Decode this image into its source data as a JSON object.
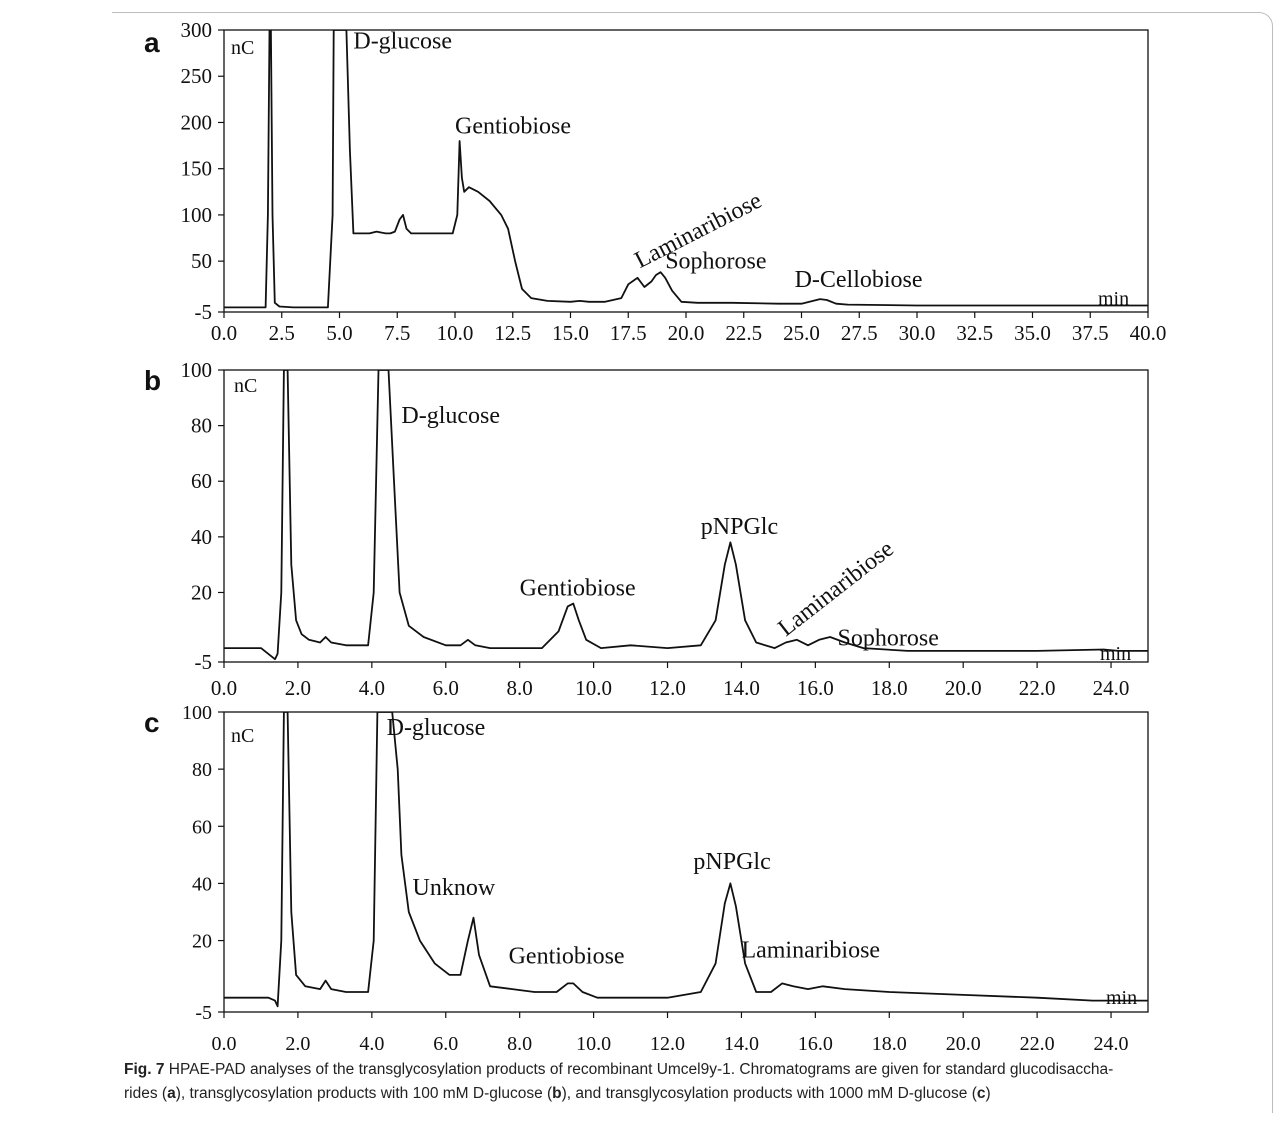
{
  "chart_data": [
    {
      "type": "line",
      "panel": "a",
      "ylabel": "nC",
      "xlabel": "min",
      "xlim": [
        0,
        40
      ],
      "ylim": [
        -5,
        300
      ],
      "x_ticks": [
        0,
        2.5,
        5,
        7.5,
        10,
        12.5,
        15,
        17.5,
        20,
        22.5,
        25,
        27.5,
        30,
        32.5,
        35,
        37.5,
        40
      ],
      "x_tick_labels": [
        "0.0",
        "2.5",
        "5.0",
        "7.5",
        "10.0",
        "12.5",
        "15.0",
        "17.5",
        "20.0",
        "22.5",
        "25.0",
        "27.5",
        "30.0",
        "32.5",
        "35.0",
        "37.5",
        "40.0"
      ],
      "y_ticks": [
        -5,
        50,
        100,
        150,
        200,
        250,
        300
      ],
      "y_tick_labels": [
        "-5",
        "50",
        "100",
        "150",
        "200",
        "250",
        "300"
      ],
      "series": [
        {
          "x": [
            0,
            1.6,
            1.8,
            1.9,
            1.97,
            2.03,
            2.1,
            2.2,
            2.4,
            3,
            4,
            4.5,
            4.7,
            4.75,
            4.8,
            5,
            5.3,
            5.45,
            5.6,
            5.8,
            6,
            6.3,
            6.6,
            7,
            7.2,
            7.4,
            7.6,
            7.75,
            7.9,
            8.1,
            8.6,
            9.5,
            9.9,
            10.1,
            10.2,
            10.3,
            10.4,
            10.6,
            11,
            11.5,
            12,
            12.3,
            12.6,
            12.9,
            13.3,
            14,
            15,
            15.4,
            15.8,
            16.5,
            17.2,
            17.5,
            17.9,
            18.2,
            18.5,
            18.7,
            18.9,
            19.1,
            19.4,
            19.8,
            20.5,
            22,
            24,
            25,
            25.5,
            25.8,
            26.1,
            26.5,
            27,
            30,
            35,
            40
          ],
          "y": [
            0,
            0,
            0,
            100,
            300,
            300,
            100,
            5,
            1,
            0,
            0,
            0,
            100,
            300,
            300,
            300,
            300,
            170,
            80,
            80,
            80,
            80,
            82,
            80,
            80,
            82,
            95,
            100,
            85,
            80,
            80,
            80,
            80,
            100,
            180,
            140,
            125,
            130,
            125,
            115,
            100,
            85,
            50,
            20,
            10,
            7,
            6,
            7,
            6,
            6,
            10,
            25,
            32,
            22,
            28,
            35,
            38,
            32,
            18,
            6,
            5,
            5,
            4,
            4,
            7,
            9,
            8,
            4,
            3,
            2,
            2,
            2
          ]
        }
      ],
      "annotations": [
        {
          "text": "D-glucose",
          "x": 5.6,
          "y": 280
        },
        {
          "text": "Gentiobiose",
          "x": 10.0,
          "y": 188
        },
        {
          "text": "Laminaribiose",
          "x": 18.0,
          "y": 42,
          "rotate": -27
        },
        {
          "text": "Sophorose",
          "x": 19.1,
          "y": 42
        },
        {
          "text": "D-Cellobiose",
          "x": 24.7,
          "y": 22
        }
      ]
    },
    {
      "type": "line",
      "panel": "b",
      "ylabel": "nC",
      "xlabel": "min",
      "xlim": [
        0,
        25
      ],
      "ylim": [
        -5,
        100
      ],
      "x_ticks": [
        0,
        2,
        4,
        6,
        8,
        10,
        12,
        14,
        16,
        18,
        20,
        22,
        24
      ],
      "x_tick_labels": [
        "0.0",
        "2.0",
        "4.0",
        "6.0",
        "8.0",
        "10.0",
        "12.0",
        "14.0",
        "16.0",
        "18.0",
        "20.0",
        "22.0",
        "24.0"
      ],
      "y_ticks": [
        -5,
        20,
        40,
        60,
        80,
        100
      ],
      "y_tick_labels": [
        "-5",
        "20",
        "40",
        "60",
        "80",
        "100"
      ],
      "series": [
        {
          "x": [
            0,
            1,
            1.38,
            1.45,
            1.55,
            1.62,
            1.72,
            1.82,
            1.95,
            2.1,
            2.3,
            2.6,
            2.75,
            2.9,
            3.3,
            3.9,
            4.05,
            4.18,
            4.3,
            4.45,
            4.6,
            4.75,
            5.0,
            5.4,
            6.0,
            6.4,
            6.6,
            6.8,
            7.2,
            8.6,
            9.05,
            9.3,
            9.45,
            9.6,
            9.8,
            10.2,
            11,
            12,
            12.9,
            13.3,
            13.55,
            13.7,
            13.85,
            14.1,
            14.4,
            14.9,
            15.2,
            15.5,
            15.8,
            16.1,
            16.4,
            16.8,
            17.3,
            18.5,
            22,
            23.8,
            24.2,
            25
          ],
          "y": [
            0,
            0,
            -4,
            -2,
            20,
            100,
            100,
            30,
            10,
            5,
            3,
            2,
            4,
            2,
            1,
            1,
            20,
            100,
            100,
            100,
            60,
            20,
            8,
            4,
            1,
            1,
            3,
            1,
            0,
            0,
            6,
            15,
            16,
            10,
            3,
            0,
            1,
            0,
            1,
            10,
            30,
            38,
            30,
            10,
            2,
            0,
            2,
            3,
            1,
            3,
            4,
            2,
            0,
            -1,
            -1,
            -0.5,
            -1,
            -1
          ]
        }
      ],
      "annotations": [
        {
          "text": "D-glucose",
          "x": 4.8,
          "y": 81
        },
        {
          "text": "Gentiobiose",
          "x": 8.0,
          "y": 19
        },
        {
          "text": "pNPGlc",
          "x": 12.9,
          "y": 41
        },
        {
          "text": "Laminaribiose",
          "x": 15.2,
          "y": 4,
          "rotate": -38
        },
        {
          "text": "Sophorose",
          "x": 16.6,
          "y": 1
        }
      ]
    },
    {
      "type": "line",
      "panel": "c",
      "ylabel": "nC",
      "xlabel": "min",
      "xlim": [
        0,
        25
      ],
      "ylim": [
        -5,
        100
      ],
      "x_ticks": [
        0,
        2,
        4,
        6,
        8,
        10,
        12,
        14,
        16,
        18,
        20,
        22,
        24
      ],
      "x_tick_labels": [
        "0.0",
        "2.0",
        "4.0",
        "6.0",
        "8.0",
        "10.0",
        "12.0",
        "14.0",
        "16.0",
        "18.0",
        "20.0",
        "22.0",
        "24.0"
      ],
      "y_ticks": [
        -5,
        20,
        40,
        60,
        80,
        100
      ],
      "y_tick_labels": [
        "-5",
        "20",
        "40",
        "60",
        "80",
        "100"
      ],
      "series": [
        {
          "x": [
            0,
            1.2,
            1.38,
            1.45,
            1.55,
            1.62,
            1.72,
            1.82,
            1.95,
            2.2,
            2.6,
            2.75,
            2.9,
            3.3,
            3.9,
            4.05,
            4.15,
            4.25,
            4.55,
            4.7,
            4.8,
            5.0,
            5.3,
            5.7,
            6.1,
            6.4,
            6.6,
            6.75,
            6.9,
            7.2,
            7.8,
            8.4,
            9.0,
            9.3,
            9.45,
            9.7,
            10.1,
            11,
            12,
            12.9,
            13.3,
            13.55,
            13.7,
            13.85,
            14.1,
            14.4,
            14.8,
            15.1,
            15.4,
            15.8,
            16.2,
            16.8,
            18,
            20,
            22,
            23.5,
            25
          ],
          "y": [
            0,
            0,
            -1,
            -3,
            20,
            100,
            100,
            30,
            8,
            4,
            3,
            6,
            3,
            2,
            2,
            20,
            100,
            100,
            100,
            80,
            50,
            30,
            20,
            12,
            8,
            8,
            20,
            28,
            15,
            4,
            3,
            2,
            2,
            5,
            5,
            2,
            0,
            0,
            0,
            2,
            12,
            33,
            40,
            32,
            12,
            2,
            2,
            5,
            4,
            3,
            4,
            3,
            2,
            1,
            0,
            -1,
            -1
          ]
        }
      ],
      "annotations": [
        {
          "text": "D-glucose",
          "x": 4.4,
          "y": 92
        },
        {
          "text": "Unknow",
          "x": 5.1,
          "y": 36
        },
        {
          "text": "Gentiobiose",
          "x": 7.7,
          "y": 12
        },
        {
          "text": "pNPGlc",
          "x": 12.7,
          "y": 45
        },
        {
          "text": "Laminaribiose",
          "x": 14.0,
          "y": 14
        }
      ]
    }
  ],
  "caption": {
    "fig_label": "Fig. 7",
    "text_1": "  HPAE-PAD analyses of the transglycosylation products of recombinant Umcel9y-1. Chromatograms are given for standard glucodisaccha-",
    "text_2": "rides (",
    "ref_a": "a",
    "text_3": "), transglycosylation products with 100 mM D-glucose (",
    "ref_b": "b",
    "text_4": "), and transglycosylation products with 1000 mM D-glucose (",
    "ref_c": "c",
    "text_5": ")"
  },
  "colors": {
    "trace": "#111111",
    "tick_marker": "#1a4fd6",
    "axis": "#111111"
  }
}
